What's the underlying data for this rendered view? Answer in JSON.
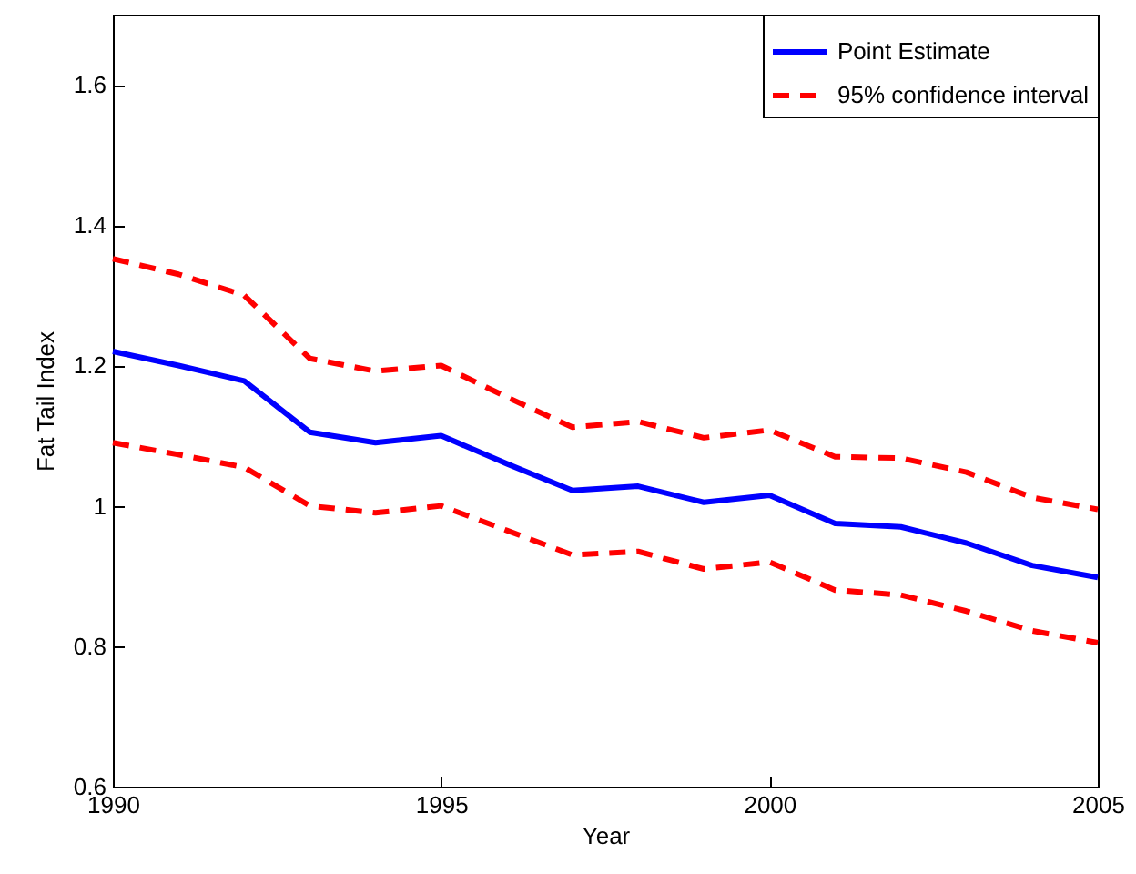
{
  "chart_data": {
    "type": "line",
    "xlabel": "Year",
    "ylabel": "Fat Tail Index",
    "x": [
      1990,
      1991,
      1992,
      1993,
      1994,
      1995,
      1996,
      1997,
      1998,
      1999,
      2000,
      2001,
      2002,
      2003,
      2004,
      2005
    ],
    "series": [
      {
        "name": "Point Estimate",
        "color": "#0000ff",
        "line_style": "solid",
        "values": [
          1.22,
          1.2,
          1.178,
          1.105,
          1.09,
          1.1,
          1.06,
          1.022,
          1.028,
          1.005,
          1.015,
          0.975,
          0.97,
          0.947,
          0.915,
          0.898
        ]
      },
      {
        "name": "95% confidence interval",
        "color": "#ff0000",
        "line_style": "dashed",
        "values": [
          1.352,
          1.33,
          1.3,
          1.21,
          1.192,
          1.2,
          1.155,
          1.112,
          1.12,
          1.097,
          1.108,
          1.07,
          1.068,
          1.048,
          1.012,
          0.995
        ]
      },
      {
        "color": "#ff0000",
        "line_style": "dashed",
        "values": [
          1.09,
          1.073,
          1.055,
          1.0,
          0.99,
          1.0,
          0.965,
          0.93,
          0.935,
          0.91,
          0.92,
          0.88,
          0.873,
          0.85,
          0.822,
          0.805
        ]
      }
    ],
    "xlim": [
      1990,
      2005
    ],
    "xticks": [
      1990,
      1995,
      2000,
      2005
    ],
    "ylim": [
      0.6,
      1.7
    ],
    "yticks": [
      0.6,
      0.8,
      1,
      1.2,
      1.4,
      1.6
    ],
    "grid": false,
    "legend": "top right",
    "marker": "none"
  }
}
